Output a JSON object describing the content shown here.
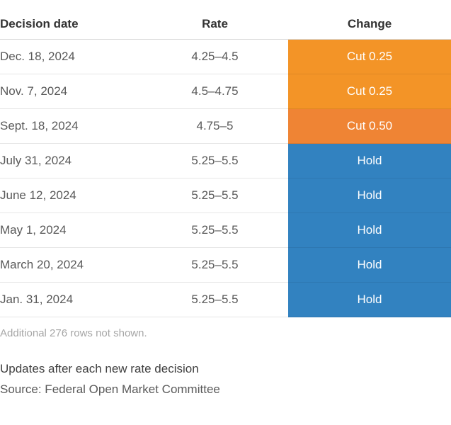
{
  "chart_data": {
    "type": "table",
    "columns": [
      "Decision date",
      "Rate",
      "Change"
    ],
    "rows": [
      {
        "date": "Dec. 18, 2024",
        "rate": "4.25–4.5",
        "change": "Cut 0.25",
        "color": "#f39427"
      },
      {
        "date": "Nov. 7, 2024",
        "rate": "4.5–4.75",
        "change": "Cut 0.25",
        "color": "#f39427"
      },
      {
        "date": "Sept. 18, 2024",
        "rate": "4.75–5",
        "change": "Cut 0.50",
        "color": "#ef8434"
      },
      {
        "date": "July 31, 2024",
        "rate": "5.25–5.5",
        "change": "Hold",
        "color": "#3282c0"
      },
      {
        "date": "June 12, 2024",
        "rate": "5.25–5.5",
        "change": "Hold",
        "color": "#3282c0"
      },
      {
        "date": "May 1, 2024",
        "rate": "5.25–5.5",
        "change": "Hold",
        "color": "#3282c0"
      },
      {
        "date": "March 20, 2024",
        "rate": "5.25–5.5",
        "change": "Hold",
        "color": "#3282c0"
      },
      {
        "date": "Jan. 31, 2024",
        "rate": "5.25–5.5",
        "change": "Hold",
        "color": "#3282c0"
      }
    ]
  },
  "footer": {
    "more_rows_note": "Additional 276 rows not shown.",
    "updates_note": "Updates after each new rate decision",
    "source": "Source: Federal Open Market Committee"
  }
}
